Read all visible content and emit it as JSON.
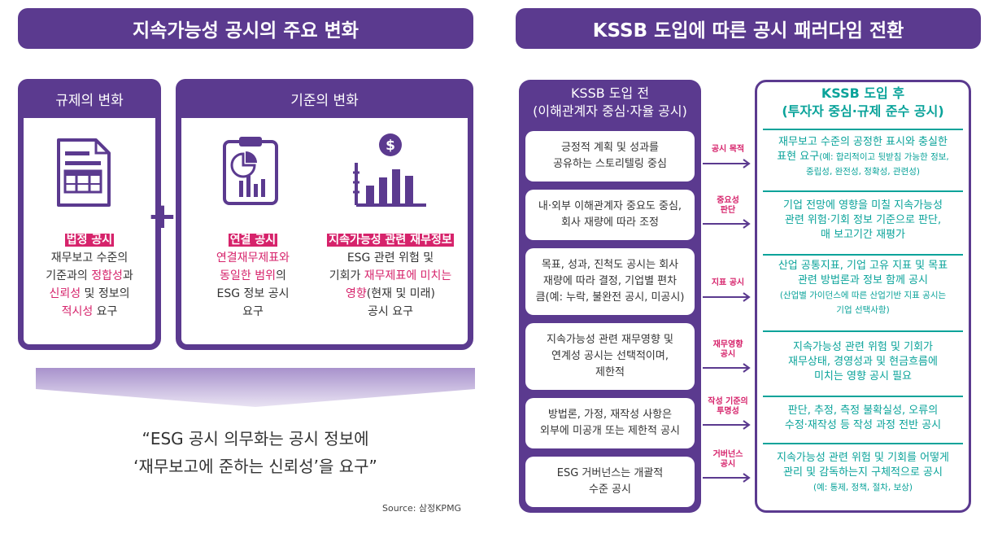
{
  "left": {
    "banner": "지속가능성 공시의 주요 변화",
    "regulation": {
      "header": "규제의 변화",
      "highlight": "법정 공시",
      "lines": [
        "재무보고 수준의",
        "기준과의 ",
        "정합성",
        "과",
        "신뢰성",
        " 및 정보의",
        "적시성",
        " 요구"
      ]
    },
    "standards": {
      "header": "기준의 변화",
      "col1": {
        "highlight": "연결 공시",
        "lines": [
          "연결재무제표와",
          "동일한 범위",
          "의",
          "ESG 정보 공시",
          "요구"
        ]
      },
      "col2": {
        "highlight": "지속가능성 관련 재무정보",
        "lines": [
          "ESG 관련 위험 및",
          "기회가 ",
          "재무제표에 미치는",
          "영향",
          "(현재 및 미래)",
          "공시 요구"
        ]
      }
    },
    "plus": "+",
    "quote_line1": "“ESG 공시 의무화는 공시 정보에",
    "quote_line2": "‘재무보고에 준하는 신뢰성’을 요구”",
    "source": "Source: 삼정KPMG"
  },
  "right": {
    "banner": "KSSB 도입에 따른 공시 패러다임 전환",
    "before": {
      "title1": "KSSB 도입 전",
      "title2": "(이해관계자 중심·자율 공시)",
      "items": [
        [
          "긍정적 계획 및 성과를",
          "공유하는 스토리텔링 중심"
        ],
        [
          "내·외부 이해관계자 중요도 중심,",
          "회사 재량에 따라 조정"
        ],
        [
          "목표, 성과, 진척도 공시는 회사",
          "재량에 따라 결정, 기업별 편차",
          "큼(예: 누락, 불완전 공시, 미공시)"
        ],
        [
          "지속가능성 관련 재무영향 및",
          "연계성 공시는 선택적이며,",
          "제한적"
        ],
        [
          "방법론, 가정, 재작성 사항은",
          "외부에 미공개 또는 제한적 공시"
        ],
        [
          "ESG 거버넌스는 개괄적",
          "수준 공시"
        ]
      ]
    },
    "connectors": [
      [
        "공시 목적"
      ],
      [
        "중요성",
        "판단"
      ],
      [
        "지표 공시"
      ],
      [
        "재무영향",
        "공시"
      ],
      [
        "작성 기준의",
        "투명성"
      ],
      [
        "거버넌스",
        "공시"
      ]
    ],
    "after": {
      "title1": "KSSB 도입 후",
      "title2": "(투자자 중심·규제 준수 공시)",
      "items": [
        {
          "lines": [
            "재무보고 수준의 공정한 표시와 충실한"
          ],
          "line2": "표현 요구",
          "small": "(예: 합리적이고 뒷받침 가능한 정보,",
          "small2": "중립성, 완전성, 정확성, 관련성)"
        },
        {
          "lines": [
            "기업 전망에 영향을 미칠 지속가능성",
            "관련 위험·기회 정보 기준으로 판단,",
            "매 보고기간 재평가"
          ]
        },
        {
          "lines": [
            "산업 공통지표, 기업 고유 지표 및 목표",
            "관련 방법론과 정보 함께 공시"
          ],
          "small": "(산업별 가이던스에 따른 산업기반 지표 공시는",
          "small2": "기업 선택사항)"
        },
        {
          "lines": [
            "지속가능성 관련 위험 및 기회가",
            "재무상태, 경영성과 및 현금흐름에",
            "미치는 영향 공시 필요"
          ]
        },
        {
          "lines": [
            "판단, 추정, 측정 불확실성, 오류의",
            "수정·재작성 등 작성 과정 전반 공시"
          ]
        },
        {
          "lines": [
            "지속가능성 관련 위험 및 기회를 어떻게",
            "관리 및 감독하는지 구체적으로 공시"
          ],
          "small": "(예: 통제, 정책, 절차, 보상)"
        }
      ]
    }
  }
}
